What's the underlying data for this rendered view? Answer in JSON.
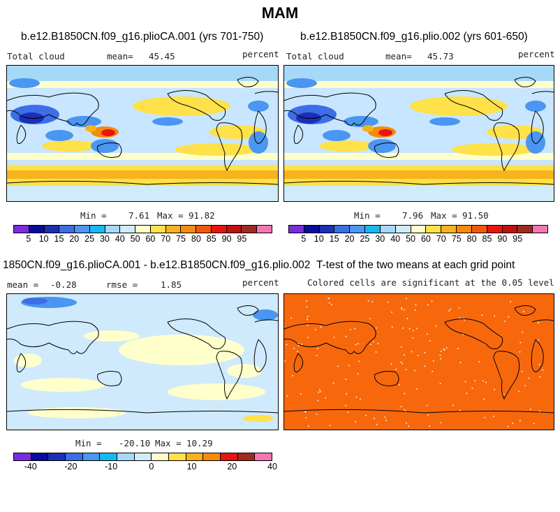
{
  "title": "MAM",
  "panels": [
    {
      "title": "b.e12.B1850CN.f09_g16.plioCA.001 (yrs 701-750)",
      "left_label": "Total cloud",
      "mean_label": "mean=",
      "mean_value": "45.45",
      "units": "percent",
      "min_label": "Min =",
      "min_value": "7.61",
      "max_label": "Max =",
      "max_value": "91.82"
    },
    {
      "title": "b.e12.B1850CN.f09_g16.plio.002 (yrs 601-650)",
      "left_label": "Total cloud",
      "mean_label": "mean=",
      "mean_value": "45.73",
      "units": "percent",
      "min_label": "Min =",
      "min_value": "7.96",
      "max_label": "Max =",
      "max_value": "91.50"
    },
    {
      "title": "1850CN.f09_g16.plioCA.001 - b.e12.B1850CN.f09_g16.plio.002",
      "mean_label": "mean =",
      "mean_value": "-0.28",
      "rmse_label": "rmse =",
      "rmse_value": "1.85",
      "units": "percent",
      "min_label": "Min =",
      "min_value": "-20.10",
      "max_label": "Max =",
      "max_value": "10.29"
    },
    {
      "title": "T-test of the two means at each grid point",
      "subtitle": "Colored cells are significant at the 0.05 level"
    }
  ],
  "colorbar_abs": {
    "colors": [
      "#7b2be0",
      "#0a0a9c",
      "#1c2fb8",
      "#3d6ee6",
      "#4a96f0",
      "#17b8f2",
      "#a6d8f8",
      "#d0ecfb",
      "#ffffcc",
      "#ffe14a",
      "#f7b21c",
      "#f58a0b",
      "#f25a0b",
      "#e8140e",
      "#c2100e",
      "#9e2b22",
      "#f576b4"
    ],
    "ticks": [
      "5",
      "10",
      "15",
      "20",
      "25",
      "30",
      "40",
      "50",
      "60",
      "70",
      "75",
      "80",
      "85",
      "90",
      "95"
    ]
  },
  "colorbar_diff": {
    "colors": [
      "#7b2be0",
      "#0a0a9c",
      "#1c2fb8",
      "#3d6ee6",
      "#4a96f0",
      "#17b8f2",
      "#a6d8f8",
      "#d0ecfb",
      "#ffffcc",
      "#ffe14a",
      "#f7b21c",
      "#f58a0b",
      "#e8140e",
      "#9e2b22",
      "#f576b4"
    ],
    "ticks": [
      "-40",
      "-20",
      "-10",
      "0",
      "10",
      "20",
      "40"
    ]
  },
  "colors": {
    "ocean_light": "#c8e6ff",
    "ttest_fill": "#f7680d",
    "diff_bg": "#cfeafc",
    "diff_pale": "#ffffcc"
  }
}
